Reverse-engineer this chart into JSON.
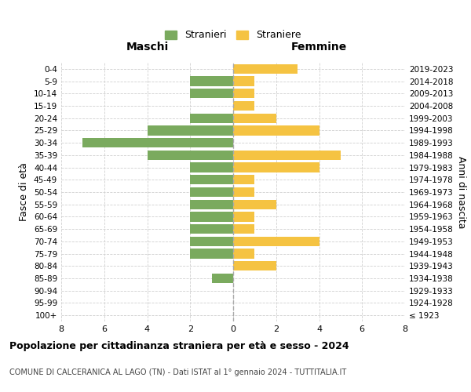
{
  "age_groups": [
    "100+",
    "95-99",
    "90-94",
    "85-89",
    "80-84",
    "75-79",
    "70-74",
    "65-69",
    "60-64",
    "55-59",
    "50-54",
    "45-49",
    "40-44",
    "35-39",
    "30-34",
    "25-29",
    "20-24",
    "15-19",
    "10-14",
    "5-9",
    "0-4"
  ],
  "birth_years": [
    "≤ 1923",
    "1924-1928",
    "1929-1933",
    "1934-1938",
    "1939-1943",
    "1944-1948",
    "1949-1953",
    "1954-1958",
    "1959-1963",
    "1964-1968",
    "1969-1973",
    "1974-1978",
    "1979-1983",
    "1984-1988",
    "1989-1993",
    "1994-1998",
    "1999-2003",
    "2004-2008",
    "2009-2013",
    "2014-2018",
    "2019-2023"
  ],
  "males": [
    0,
    0,
    0,
    1,
    0,
    2,
    2,
    2,
    2,
    2,
    2,
    2,
    2,
    4,
    7,
    4,
    2,
    0,
    2,
    2,
    0
  ],
  "females": [
    0,
    0,
    0,
    0,
    2,
    1,
    4,
    1,
    1,
    2,
    1,
    1,
    4,
    5,
    0,
    4,
    2,
    1,
    1,
    1,
    3
  ],
  "male_color": "#7aaa5e",
  "female_color": "#f5c342",
  "title": "Popolazione per cittadinanza straniera per età e sesso - 2024",
  "subtitle": "COMUNE DI CALCERANICA AL LAGO (TN) - Dati ISTAT al 1° gennaio 2024 - TUTTITALIA.IT",
  "xlabel_left": "Maschi",
  "xlabel_right": "Femmine",
  "ylabel_left": "Fasce di età",
  "ylabel_right": "Anni di nascita",
  "legend_male": "Stranieri",
  "legend_female": "Straniere",
  "xlim": 8,
  "background_color": "#ffffff",
  "grid_color": "#d0d0d0"
}
